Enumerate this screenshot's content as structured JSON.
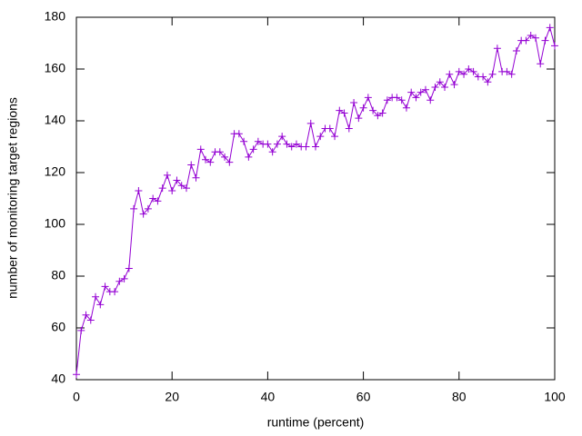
{
  "chart_data": {
    "type": "line",
    "xlabel": "runtime (percent)",
    "ylabel": "number of monitoring target regions",
    "x": [
      0,
      1,
      2,
      3,
      4,
      5,
      6,
      7,
      8,
      9,
      10,
      11,
      12,
      13,
      14,
      15,
      16,
      17,
      18,
      19,
      20,
      21,
      22,
      23,
      24,
      25,
      26,
      27,
      28,
      29,
      30,
      31,
      32,
      33,
      34,
      35,
      36,
      37,
      38,
      39,
      40,
      41,
      42,
      43,
      44,
      45,
      46,
      47,
      48,
      49,
      50,
      51,
      52,
      53,
      54,
      55,
      56,
      57,
      58,
      59,
      60,
      61,
      62,
      63,
      64,
      65,
      66,
      67,
      68,
      69,
      70,
      71,
      72,
      73,
      74,
      75,
      76,
      77,
      78,
      79,
      80,
      81,
      82,
      83,
      84,
      85,
      86,
      87,
      88,
      89,
      90,
      91,
      92,
      93,
      94,
      95,
      96,
      97,
      98,
      99,
      100
    ],
    "series": [
      {
        "color": "#9400d3",
        "values": [
          42,
          59,
          65,
          63,
          72,
          69,
          76,
          74,
          74,
          78,
          79,
          83,
          106,
          113,
          104,
          106,
          110,
          109,
          114,
          119,
          113,
          117,
          115,
          114,
          123,
          118,
          129,
          125,
          124,
          128,
          128,
          126,
          124,
          135,
          135,
          132,
          126,
          129,
          132,
          131,
          131,
          128,
          131,
          134,
          131,
          130,
          131,
          130,
          130,
          139,
          130,
          134,
          137,
          137,
          134,
          144,
          143,
          137,
          147,
          141,
          145,
          149,
          144,
          142,
          143,
          148,
          149,
          149,
          148,
          145,
          151,
          149,
          151,
          152,
          148,
          153,
          155,
          153,
          158,
          154,
          159,
          158,
          160,
          159,
          157,
          157,
          155,
          158,
          168,
          159,
          159,
          158,
          167,
          171,
          171,
          173,
          172,
          162,
          171,
          176,
          169
        ]
      }
    ],
    "xlim": [
      0,
      100
    ],
    "xticks": [
      0,
      20,
      40,
      60,
      80,
      100
    ],
    "ylim": [
      40,
      180
    ],
    "yticks": [
      40,
      60,
      80,
      100,
      120,
      140,
      160,
      180
    ]
  }
}
